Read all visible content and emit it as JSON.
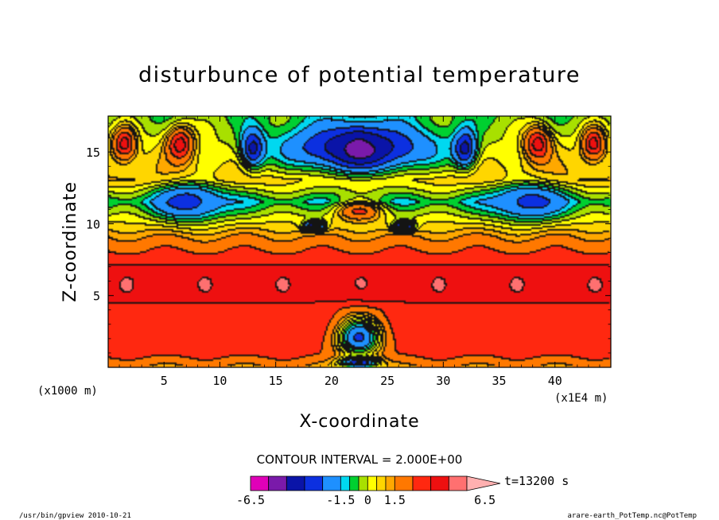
{
  "chart_data": {
    "type": "heatmap",
    "title": "disturbunce of potential temperature",
    "xlabel": "X-coordinate",
    "ylabel": "Z-coordinate",
    "xunit": "(x1E4 m)",
    "yunit": "(x1000 m)",
    "xlim": [
      0,
      45
    ],
    "ylim": [
      0,
      17.5
    ],
    "x_ticks": [
      "5",
      "10",
      "15",
      "20",
      "25",
      "30",
      "35",
      "40"
    ],
    "x_tick_values": [
      5,
      10,
      15,
      20,
      25,
      30,
      35,
      40
    ],
    "y_ticks": [
      "5",
      "10",
      "15"
    ],
    "y_tick_values": [
      5,
      10,
      15
    ],
    "contour_interval_label": "CONTOUR INTERVAL = 2.000E+00",
    "time_label": "t=13200 s",
    "colorbar": {
      "levels": [
        -6.5,
        -5.5,
        -4.5,
        -3.5,
        -2.5,
        -1.5,
        -1.0,
        -0.5,
        0,
        0.5,
        1.0,
        1.5,
        2.5,
        3.5,
        4.5,
        5.5,
        6.5
      ],
      "colors": [
        "#e000b8",
        "#7a1aaa",
        "#0a14a8",
        "#0c30e0",
        "#1e90ff",
        "#00d8f0",
        "#00d030",
        "#a8e000",
        "#ffff00",
        "#ffd600",
        "#ffa800",
        "#ff7800",
        "#ff2810",
        "#ee1010",
        "#ff7070",
        "#ffb0b0"
      ],
      "tick_labels": [
        "-6.5",
        "-1.5",
        "0",
        "1.5",
        "6.5"
      ],
      "tick_values": [
        -6.5,
        -1.5,
        0,
        1.5,
        6.5
      ]
    },
    "features": [
      {
        "x": 22.5,
        "z": 15.4,
        "rx": 1.9,
        "rz": 1.2,
        "v": -6.0
      },
      {
        "x": 22.5,
        "z": 15.2,
        "rx": 8.0,
        "rz": 2.0,
        "v": -4.5
      },
      {
        "x": 13.0,
        "z": 15.2,
        "rx": 1.2,
        "rz": 1.5,
        "v": -4.0
      },
      {
        "x": 32.0,
        "z": 15.2,
        "rx": 1.2,
        "rz": 1.5,
        "v": -4.0
      },
      {
        "x": 7.5,
        "z": 11.5,
        "rx": 3.5,
        "rz": 1.5,
        "v": -3.0
      },
      {
        "x": 37.5,
        "z": 11.5,
        "rx": 3.5,
        "rz": 1.5,
        "v": -3.0
      },
      {
        "x": 1.5,
        "z": 15.5,
        "rx": 1.2,
        "rz": 1.3,
        "v": 4.0
      },
      {
        "x": 6.5,
        "z": 15.5,
        "rx": 1.4,
        "rz": 1.4,
        "v": 4.0
      },
      {
        "x": 38.5,
        "z": 15.5,
        "rx": 1.4,
        "rz": 1.4,
        "v": 4.0
      },
      {
        "x": 43.5,
        "z": 15.5,
        "rx": 1.2,
        "rz": 1.3,
        "v": 4.0
      },
      {
        "x": 22.5,
        "z": 10.8,
        "rx": 2.5,
        "rz": 0.8,
        "v": 2.5
      },
      {
        "x": 18.5,
        "z": 9.8,
        "rx": 1.0,
        "rz": 0.4,
        "v": -5.0
      },
      {
        "x": 26.5,
        "z": 9.8,
        "rx": 1.0,
        "rz": 0.4,
        "v": -5.0
      },
      {
        "x": 22.5,
        "z": 2.0,
        "rx": 2.6,
        "rz": 1.8,
        "v": -2.5
      },
      {
        "x": 22.5,
        "z": 0.3,
        "rx": 1.8,
        "rz": 0.4,
        "v": -4.0
      }
    ]
  },
  "footer": {
    "left": "/usr/bin/gpview  2010-10-21",
    "right": "arare-earth_PotTemp.nc@PotTemp"
  }
}
